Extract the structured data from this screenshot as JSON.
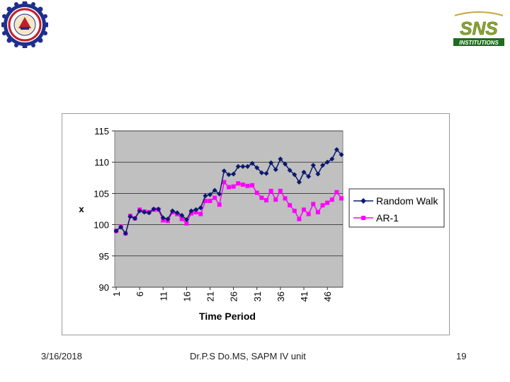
{
  "logos": {
    "left_icon": "college-seal-icon",
    "right_icon": "sns-institutions-logo-icon",
    "right_logo_text": "SNS",
    "right_logo_subtext": "INSTITUTIONS"
  },
  "footer": {
    "date": "3/16/2018",
    "center": "Dr.P.S  Do.MS, SAPM IV  unit",
    "page": "19"
  },
  "chart_data": {
    "type": "line",
    "xlabel": "Time Period",
    "ylabel": "x",
    "ylim": [
      90,
      115
    ],
    "yticks": [
      90,
      95,
      100,
      105,
      110,
      115
    ],
    "x": [
      1,
      2,
      3,
      4,
      5,
      6,
      7,
      8,
      9,
      10,
      11,
      12,
      13,
      14,
      15,
      16,
      17,
      18,
      19,
      20,
      21,
      22,
      23,
      24,
      25,
      26,
      27,
      28,
      29,
      30,
      31,
      32,
      33,
      34,
      35,
      36,
      37,
      38,
      39,
      40,
      41,
      42,
      43,
      44,
      45,
      46,
      47,
      48,
      49
    ],
    "xtick_labels": [
      "1",
      "6",
      "11",
      "16",
      "21",
      "26",
      "31",
      "36",
      "41",
      "46"
    ],
    "xtick_values": [
      1,
      6,
      11,
      16,
      21,
      26,
      31,
      36,
      41,
      46
    ],
    "legend_position": "right",
    "plot_background": "#c0c0c0",
    "series": [
      {
        "name": "Random Walk",
        "color": "#0a1a6e",
        "marker": "diamond",
        "values": [
          99.0,
          99.6,
          98.6,
          101.3,
          101.0,
          102.2,
          102.0,
          101.9,
          102.5,
          102.5,
          101.1,
          100.9,
          102.2,
          101.9,
          101.5,
          100.8,
          102.2,
          102.4,
          102.7,
          104.6,
          104.8,
          105.5,
          104.9,
          108.6,
          108.0,
          108.1,
          109.3,
          109.3,
          109.3,
          109.8,
          109.1,
          108.3,
          108.2,
          109.9,
          108.8,
          110.5,
          109.7,
          108.7,
          108.0,
          106.8,
          108.4,
          107.7,
          109.5,
          108.1,
          109.5,
          110.0,
          110.5,
          112.0,
          111.2
        ]
      },
      {
        "name": "AR-1",
        "color": "#ff00ff",
        "marker": "square",
        "values": [
          99.0,
          99.7,
          98.6,
          101.4,
          101.0,
          102.4,
          102.1,
          102.0,
          102.4,
          102.4,
          100.7,
          100.6,
          102.0,
          101.7,
          100.9,
          100.2,
          101.8,
          102.0,
          101.7,
          103.8,
          103.8,
          104.3,
          103.2,
          106.8,
          106.0,
          106.1,
          106.6,
          106.4,
          106.2,
          106.3,
          105.1,
          104.3,
          103.9,
          105.4,
          104.0,
          105.4,
          104.2,
          103.1,
          102.2,
          100.9,
          102.4,
          101.7,
          103.3,
          102.0,
          103.1,
          103.5,
          104.0,
          105.2,
          104.2
        ]
      }
    ]
  }
}
